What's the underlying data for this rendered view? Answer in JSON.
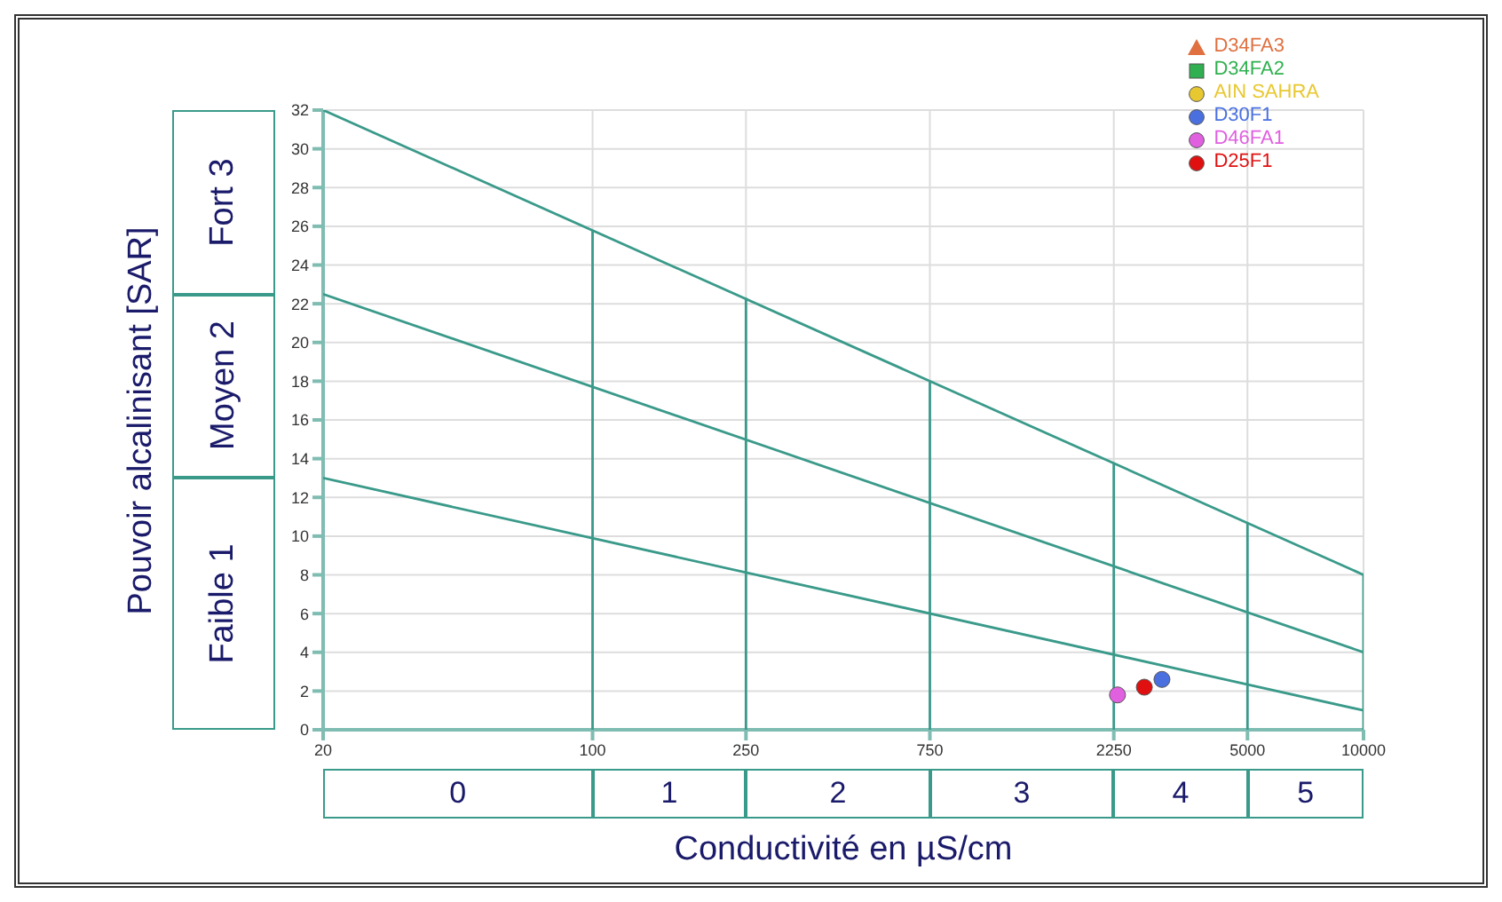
{
  "chart_data": {
    "type": "scatter",
    "xlabel": "Conductivité en µS/cm",
    "ylabel": "Pouvoir alcalinisant [SAR]",
    "log": "x",
    "grid": true,
    "legend": "top right",
    "xlim": [
      20,
      10000
    ],
    "xticks": [
      20,
      100,
      250,
      750,
      2250,
      5000,
      10000
    ],
    "ylim": [
      0,
      32
    ],
    "yticks": [
      0,
      2,
      4,
      6,
      8,
      10,
      12,
      14,
      16,
      18,
      20,
      22,
      24,
      26,
      28,
      30,
      32
    ],
    "annotations": [
      "Faible 1",
      "Moyen 2",
      "Fort 3",
      "0",
      "1",
      "2",
      "3",
      "4",
      "5"
    ],
    "series": [
      {
        "type": "line",
        "marker": "none",
        "color": "#3a9a8a",
        "x": [
          20,
          10000
        ],
        "values": [
          32,
          8
        ]
      },
      {
        "type": "line",
        "marker": "none",
        "color": "#3a9a8a",
        "x": [
          20,
          10000
        ],
        "values": [
          22.5,
          4
        ]
      },
      {
        "type": "line",
        "marker": "none",
        "color": "#3a9a8a",
        "x": [
          20,
          10000
        ],
        "values": [
          13,
          1
        ]
      },
      {
        "type": "line",
        "marker": "none",
        "color": "#3a9a8a",
        "x": [
          100,
          100
        ],
        "values": [
          0,
          25.8
        ]
      },
      {
        "type": "line",
        "marker": "none",
        "color": "#3a9a8a",
        "x": [
          250,
          250
        ],
        "values": [
          0,
          22.3
        ]
      },
      {
        "type": "line",
        "marker": "none",
        "color": "#3a9a8a",
        "x": [
          750,
          750
        ],
        "values": [
          0,
          18
        ]
      },
      {
        "type": "line",
        "marker": "none",
        "color": "#3a9a8a",
        "x": [
          2250,
          2250
        ],
        "values": [
          0,
          13.8
        ]
      },
      {
        "type": "line",
        "marker": "none",
        "color": "#3a9a8a",
        "x": [
          5000,
          5000
        ],
        "values": [
          0,
          10.7
        ]
      },
      {
        "type": "line",
        "marker": "none",
        "color": "#3a9a8a",
        "x": [
          10000,
          10000
        ],
        "values": [
          0,
          8
        ]
      },
      {
        "name": "D34FA3",
        "marker": "triangle",
        "color": "#e07040"
      },
      {
        "name": "D34FA2",
        "marker": "square",
        "color": "#30b050"
      },
      {
        "name": "AIN SAHRA",
        "marker": "circle",
        "color": "#e8c830"
      },
      {
        "name": "D30F1",
        "marker": "circle",
        "color": "#4a70e0",
        "x": [
          3000
        ],
        "values": [
          2.6
        ]
      },
      {
        "name": "D46FA1",
        "marker": "circle",
        "color": "#e060e0",
        "x": [
          2300
        ],
        "values": [
          1.8
        ]
      },
      {
        "name": "D25F1",
        "marker": "circle",
        "color": "#e01010",
        "x": [
          2700
        ],
        "values": [
          2.2
        ]
      }
    ]
  }
}
